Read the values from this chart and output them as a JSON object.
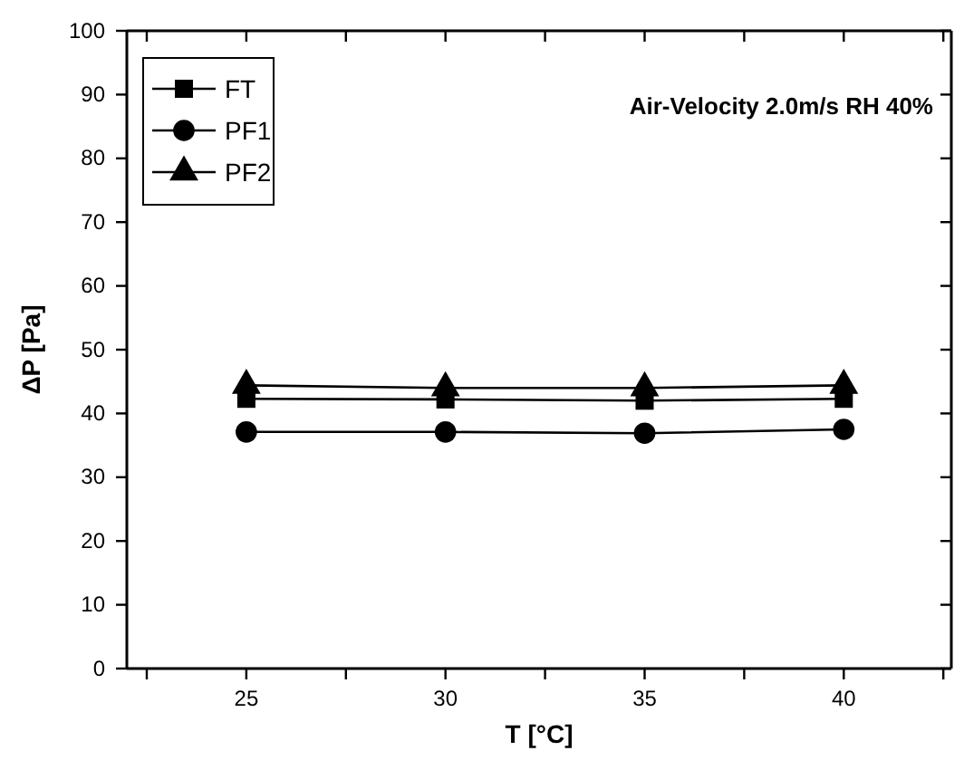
{
  "chart_data": {
    "type": "line",
    "xlabel": "T [°C]",
    "ylabel": "ΔP [Pa]",
    "annotations": [
      "Air-Velocity 2.0m/s RH 40%"
    ],
    "x": [
      25,
      30,
      35,
      40
    ],
    "series": [
      {
        "name": "FT",
        "color": "#000000",
        "marker": "square",
        "values": [
          42.3,
          42.2,
          42.0,
          42.3
        ]
      },
      {
        "name": "PF1",
        "color": "#000000",
        "marker": "circle",
        "values": [
          37.1,
          37.1,
          36.9,
          37.5
        ]
      },
      {
        "name": "PF2",
        "color": "#000000",
        "marker": "triangle",
        "values": [
          44.4,
          44.0,
          44.0,
          44.4
        ]
      }
    ],
    "xlim": [
      22,
      42.7
    ],
    "ylim": [
      0,
      100
    ],
    "xticks": [
      {
        "value": 22.5,
        "label": null
      },
      25,
      {
        "value": 27.5,
        "label": null
      },
      30,
      {
        "value": 32.5,
        "label": null
      },
      35,
      {
        "value": 37.5,
        "label": null
      },
      40,
      {
        "value": 42.5,
        "label": null
      }
    ],
    "yticks": [
      0,
      10,
      20,
      30,
      40,
      50,
      60,
      70,
      80,
      90,
      100
    ],
    "legend": "top left",
    "line_style": "solid",
    "grid": false
  }
}
